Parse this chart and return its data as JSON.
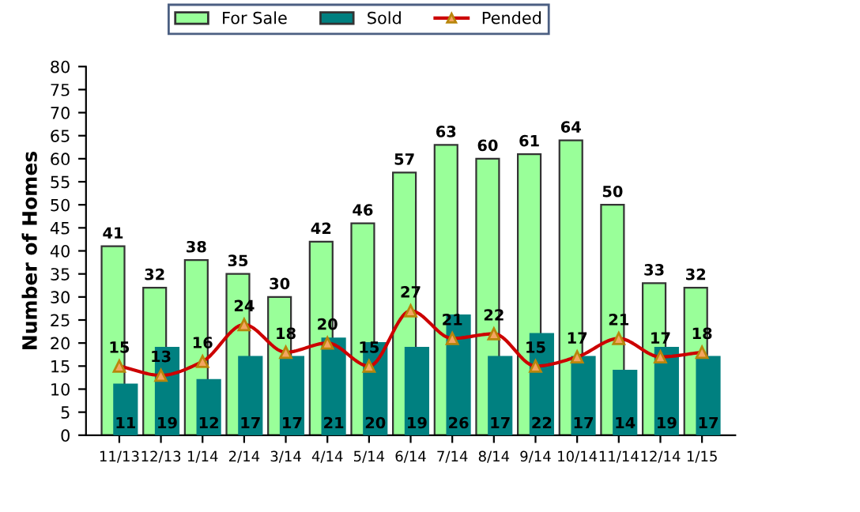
{
  "chart_data": {
    "type": "bar",
    "ylabel": "Number of Homes",
    "categories": [
      "11/13",
      "12/13",
      "1/14",
      "2/14",
      "3/14",
      "4/14",
      "5/14",
      "6/14",
      "7/14",
      "8/14",
      "9/14",
      "10/14",
      "11/14",
      "12/14",
      "1/15"
    ],
    "series": [
      {
        "name": "For Sale",
        "color": "#99ff99",
        "values": [
          41,
          32,
          38,
          35,
          30,
          42,
          46,
          57,
          63,
          60,
          61,
          64,
          50,
          33,
          32
        ]
      },
      {
        "name": "Sold",
        "color": "#008080",
        "values": [
          11,
          19,
          12,
          17,
          17,
          21,
          20,
          19,
          26,
          17,
          22,
          17,
          14,
          19,
          17
        ]
      },
      {
        "name": "Pended",
        "type": "line",
        "color": "#cc0000",
        "marker": "triangle",
        "values": [
          15,
          13,
          16,
          24,
          18,
          20,
          15,
          27,
          21,
          22,
          15,
          17,
          21,
          17,
          18
        ]
      }
    ],
    "ylim": [
      0,
      80
    ],
    "yticks": [
      0,
      5,
      10,
      15,
      20,
      25,
      30,
      35,
      40,
      45,
      50,
      55,
      60,
      65,
      70,
      75,
      80
    ],
    "data_labels": true,
    "legend": "top",
    "grid": false
  }
}
